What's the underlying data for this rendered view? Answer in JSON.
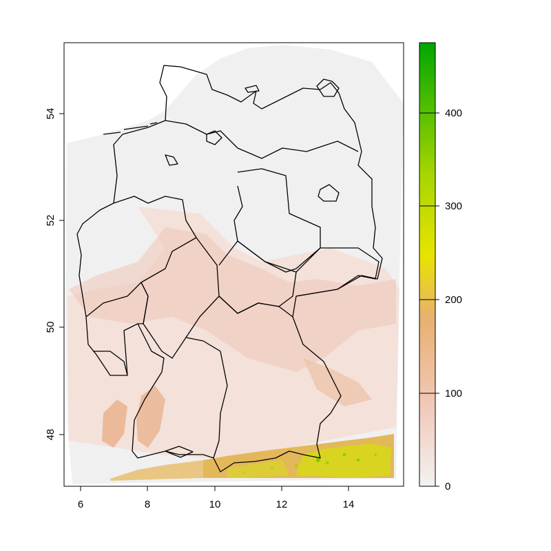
{
  "map": {
    "x_ticks": [
      "6",
      "8",
      "10",
      "12",
      "14"
    ],
    "y_ticks": [
      "48",
      "50",
      "52",
      "54"
    ],
    "x_range": [
      5.55,
      15.65
    ],
    "y_range": [
      47.05,
      55.35
    ]
  },
  "legend": {
    "ticks": [
      "0",
      "100",
      "200",
      "300",
      "400"
    ],
    "range": [
      0,
      475
    ],
    "colors": [
      "#f2f2f2",
      "#f1c9ba",
      "#e8b070",
      "#e2d120",
      "#a8d600",
      "#00a600"
    ]
  }
}
